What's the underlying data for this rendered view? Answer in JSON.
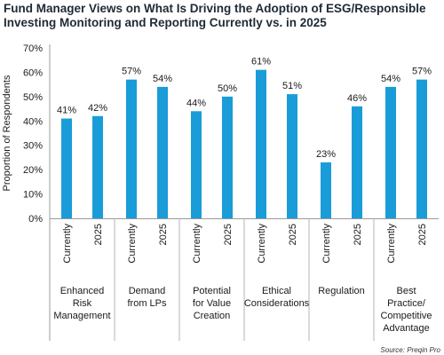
{
  "chart_data": {
    "type": "bar",
    "title": "Fund Manager Views on What Is Driving the Adoption of ESG/Responsible Investing Monitoring and Reporting Currently vs. in 2025",
    "ylabel": "Proportion of Respondents",
    "ylim": [
      0,
      70
    ],
    "yticks": [
      "0%",
      "10%",
      "20%",
      "30%",
      "40%",
      "50%",
      "60%",
      "70%"
    ],
    "value_suffix": "%",
    "bar_color": "#1a9cd8",
    "groups": [
      {
        "label": [
          "Enhanced",
          "Risk",
          "Management"
        ],
        "bars": [
          {
            "period": "Currently",
            "value": 41
          },
          {
            "period": "2025",
            "value": 42
          }
        ]
      },
      {
        "label": [
          "Demand",
          "from LPs"
        ],
        "bars": [
          {
            "period": "Currently",
            "value": 57
          },
          {
            "period": "2025",
            "value": 54
          }
        ]
      },
      {
        "label": [
          "Potential",
          "for Value",
          "Creation"
        ],
        "bars": [
          {
            "period": "Currently",
            "value": 44
          },
          {
            "period": "2025",
            "value": 50
          }
        ]
      },
      {
        "label": [
          "Ethical",
          "Considerations"
        ],
        "bars": [
          {
            "period": "Currently",
            "value": 61
          },
          {
            "period": "2025",
            "value": 51
          }
        ]
      },
      {
        "label": [
          "Regulation"
        ],
        "bars": [
          {
            "period": "Currently",
            "value": 23
          },
          {
            "period": "2025",
            "value": 46
          }
        ]
      },
      {
        "label": [
          "Best",
          "Practice/",
          "Competitive",
          "Advantage"
        ],
        "bars": [
          {
            "period": "Currently",
            "value": 54
          },
          {
            "period": "2025",
            "value": 57
          }
        ]
      }
    ],
    "source": "Source: Preqin Pro",
    "grid": false,
    "legend": "none"
  }
}
